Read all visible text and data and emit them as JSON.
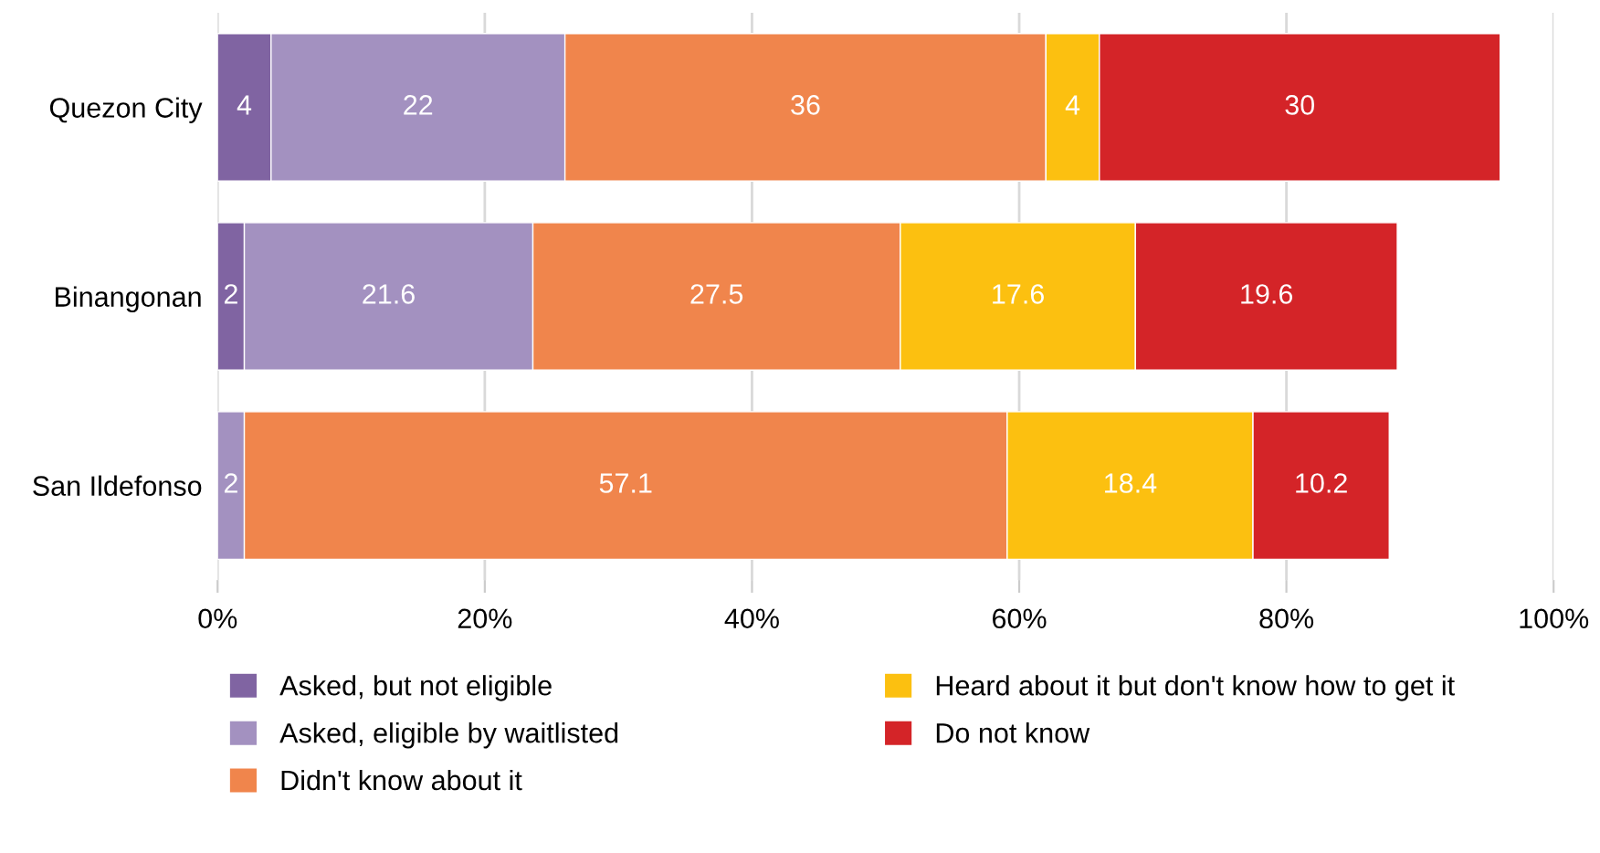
{
  "chart_data": {
    "type": "bar",
    "orientation": "horizontal",
    "stacked": true,
    "categories": [
      "Quezon City",
      "Binangonan",
      "San Ildefonso"
    ],
    "series": [
      {
        "name": "Asked, but not eligible",
        "color": "#8064a2",
        "values": [
          4,
          2,
          null
        ]
      },
      {
        "name": "Asked, eligible by waitlisted",
        "color": "#a391c0",
        "values": [
          22,
          21.6,
          2
        ]
      },
      {
        "name": "Didn't know about it",
        "color": "#f0854c",
        "values": [
          36,
          27.5,
          57.1
        ]
      },
      {
        "name": "Heard about it but don't know how to get it",
        "color": "#fcc010",
        "values": [
          4,
          17.6,
          18.4
        ]
      },
      {
        "name": "Do not know",
        "color": "#d42428",
        "values": [
          30,
          19.6,
          10.2
        ]
      }
    ],
    "xlim": [
      0,
      100
    ],
    "xticks": [
      {
        "value": 0,
        "label": "0%"
      },
      {
        "value": 20,
        "label": "20%"
      },
      {
        "value": 40,
        "label": "40%"
      },
      {
        "value": 60,
        "label": "60%"
      },
      {
        "value": 80,
        "label": "80%"
      },
      {
        "value": 100,
        "label": "100%"
      }
    ],
    "data_labels": true,
    "grid": "x",
    "legend": "bottom"
  }
}
